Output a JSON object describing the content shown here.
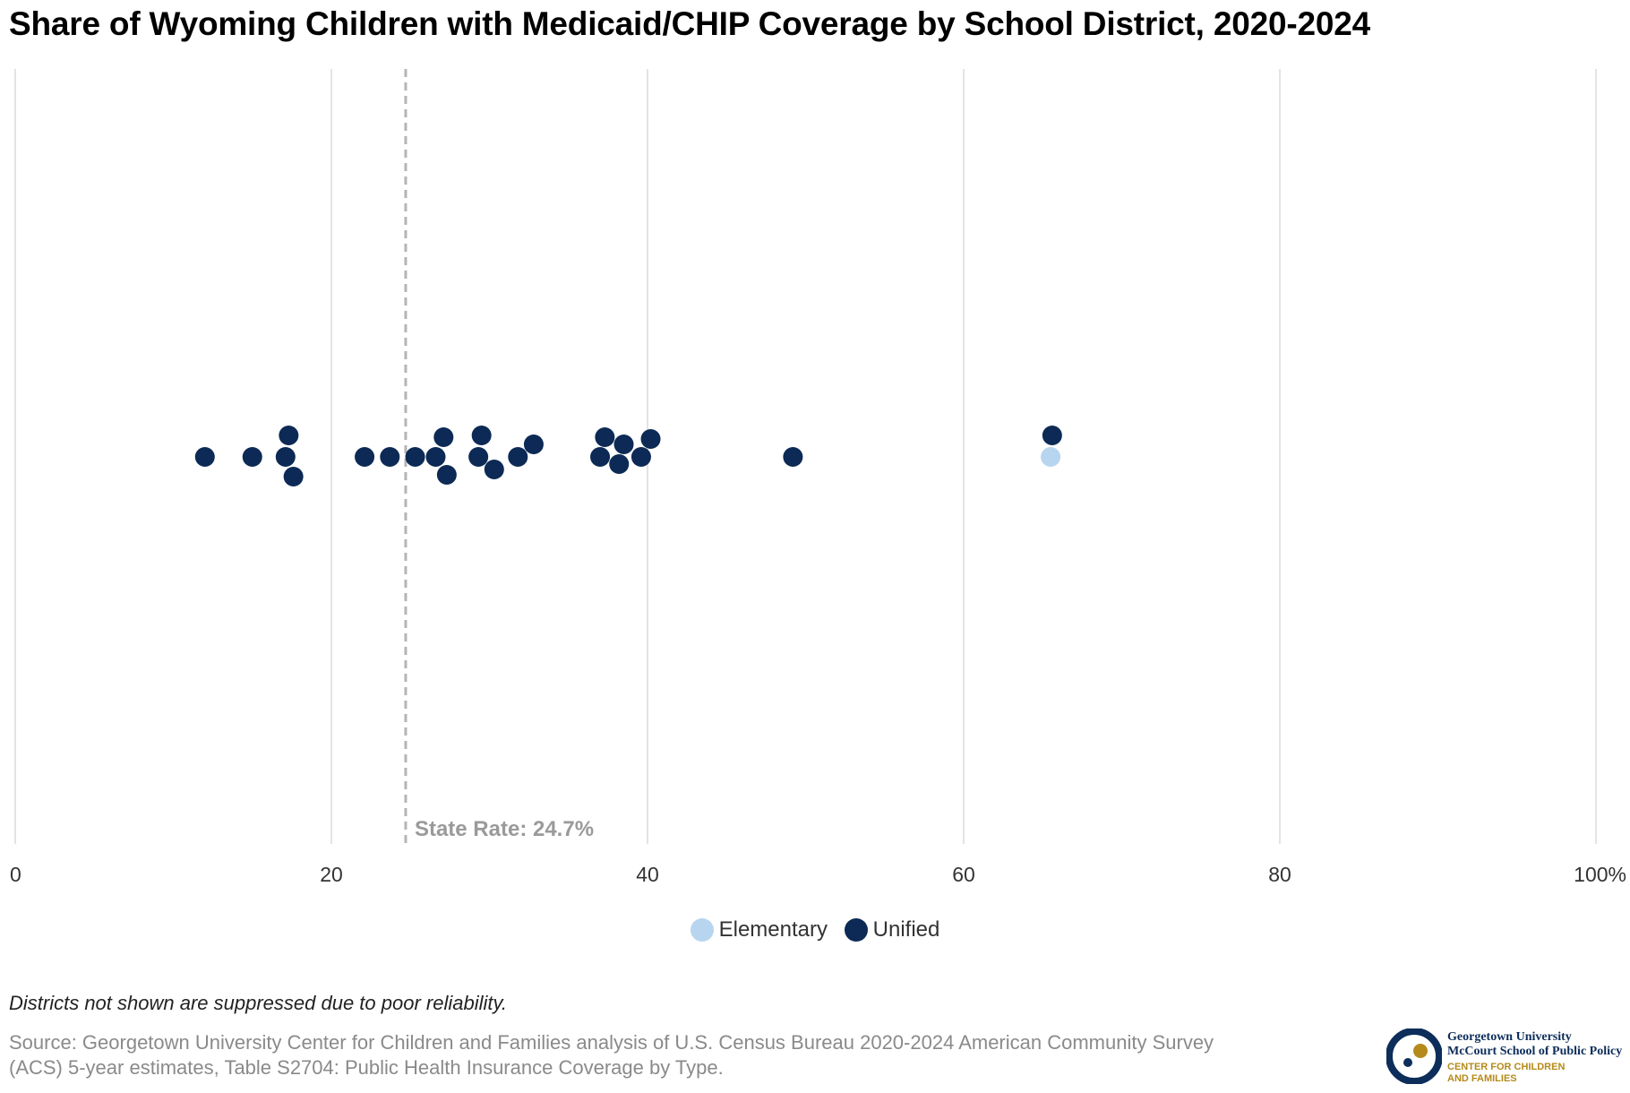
{
  "header": {
    "title": "Share of Wyoming Children with Medicaid/CHIP Coverage by School District, 2020-2024"
  },
  "chart_data": {
    "type": "scatter",
    "title": "Share of Wyoming Children with Medicaid/CHIP Coverage by School District, 2020-2024",
    "xlabel": "",
    "ylabel": "",
    "xlim": [
      0,
      100
    ],
    "x_ticks": [
      0,
      20,
      40,
      60,
      80,
      100
    ],
    "x_tick_labels": [
      "0",
      "20",
      "40",
      "60",
      "80",
      "100%"
    ],
    "grid": true,
    "legend_position": "bottom-center",
    "reference_line": {
      "value": 24.7,
      "label": "State Rate: 24.7%"
    },
    "series": [
      {
        "name": "Elementary",
        "color": "#b7d5ef",
        "values": [
          65.5
        ]
      },
      {
        "name": "Unified",
        "color": "#0c2a55",
        "values": [
          12.0,
          15.0,
          17.1,
          17.3,
          17.6,
          22.1,
          23.7,
          25.3,
          26.6,
          27.1,
          27.3,
          29.3,
          29.5,
          30.3,
          31.8,
          32.8,
          37.0,
          37.3,
          38.2,
          38.5,
          39.6,
          40.2,
          49.2,
          65.6
        ]
      }
    ]
  },
  "legend": {
    "items": [
      {
        "label": "Elementary",
        "color": "#b7d5ef"
      },
      {
        "label": "Unified",
        "color": "#0c2a55"
      }
    ]
  },
  "footer": {
    "note": "Districts not shown are suppressed due to poor reliability.",
    "source_line1": "Source: Georgetown University Center for Children and Families analysis of U.S. Census Bureau 2020-2024 American Community Survey",
    "source_line2": "(ACS) 5-year estimates, Table S2704: Public Health Insurance Coverage by Type."
  },
  "logo": {
    "line1": "Georgetown University",
    "line2": "McCourt School of Public Policy",
    "line3": "CENTER FOR CHILDREN",
    "line4": "AND FAMILIES",
    "navy": "#0d2d5a",
    "gold": "#b58a1a"
  }
}
